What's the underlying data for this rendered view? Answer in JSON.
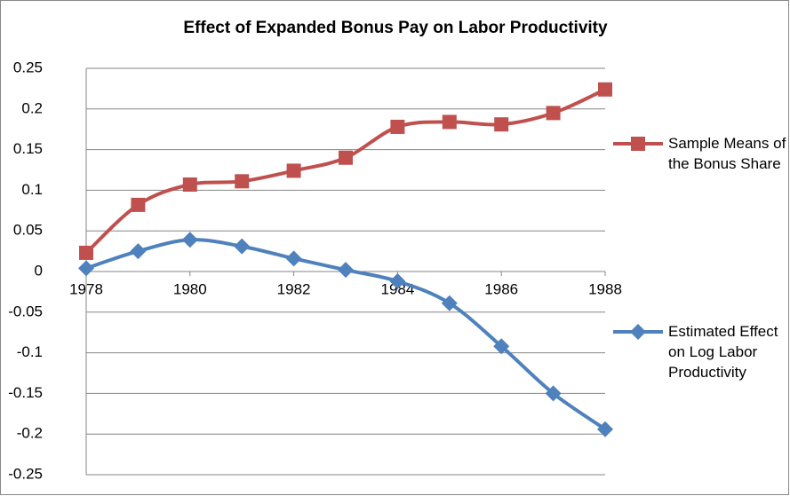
{
  "chart_data": {
    "type": "line",
    "title": "Effect of Expanded Bonus Pay on Labor Productivity",
    "x": [
      1978,
      1979,
      1980,
      1981,
      1982,
      1983,
      1984,
      1985,
      1986,
      1987,
      1988
    ],
    "xlim": [
      1978,
      1988
    ],
    "xticks": [
      1978,
      1980,
      1982,
      1984,
      1986,
      1988
    ],
    "ylim": [
      -0.25,
      0.25
    ],
    "yticks": [
      -0.25,
      -0.2,
      -0.15,
      -0.1,
      -0.05,
      0,
      0.05,
      0.1,
      0.15,
      0.2,
      0.25
    ],
    "grid": true,
    "legend": "right",
    "series": [
      {
        "name": "Sample Means of the Bonus Share",
        "color": "#c0504d",
        "marker": "square",
        "values": [
          0.023,
          0.082,
          0.107,
          0.111,
          0.124,
          0.14,
          0.178,
          0.184,
          0.181,
          0.195,
          0.224
        ]
      },
      {
        "name": "Estimated Effect on Log Labor Productivity",
        "color": "#4f81bd",
        "marker": "diamond",
        "values": [
          0.004,
          0.025,
          0.039,
          0.031,
          0.016,
          0.002,
          -0.012,
          -0.039,
          -0.092,
          -0.15,
          -0.194
        ]
      }
    ]
  }
}
